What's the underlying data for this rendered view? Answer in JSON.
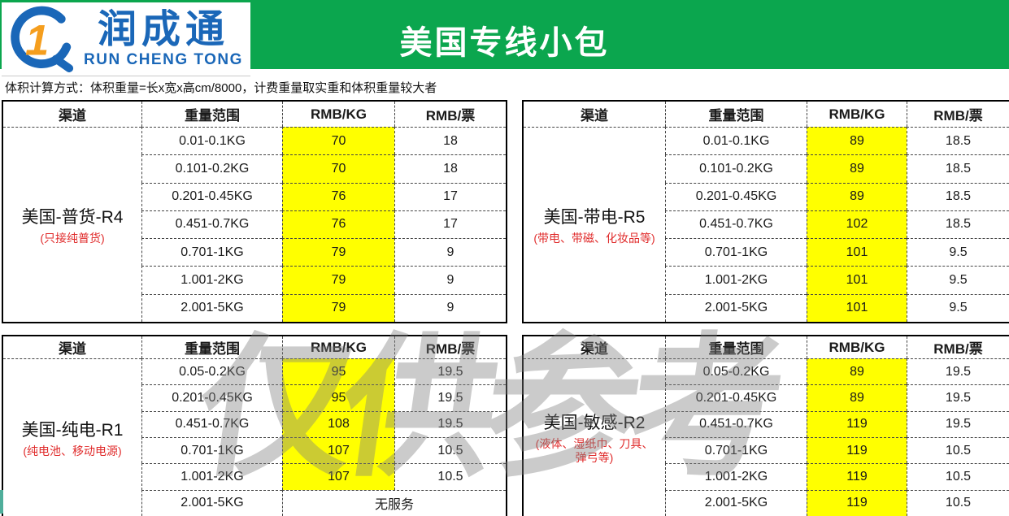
{
  "logo": {
    "brand_cn": "润成通",
    "brand_en": "RUN CHENG TONG"
  },
  "banner": {
    "title": "美国专线小包",
    "bg_color": "#0BA64E"
  },
  "note": "体积计算方式：体积重量=长x宽x高cm/8000，计费重量取实重和体积重量较大者",
  "watermark": "仅供参考",
  "columns": [
    "渠道",
    "重量范围",
    "RMB/KG",
    "RMB/票"
  ],
  "colors": {
    "rate_highlight": "#FFFF00",
    "brand_blue": "#1a67b8",
    "brand_orange": "#f59e1e",
    "note_red": "#e02b2b"
  },
  "tables": [
    {
      "channel": "美国-普货-R4",
      "channel_note": "(只接纯普货)",
      "rows": [
        {
          "range": "0.01-0.1KG",
          "kg": "70",
          "ticket": "18"
        },
        {
          "range": "0.101-0.2KG",
          "kg": "70",
          "ticket": "18"
        },
        {
          "range": "0.201-0.45KG",
          "kg": "76",
          "ticket": "17"
        },
        {
          "range": "0.451-0.7KG",
          "kg": "76",
          "ticket": "17"
        },
        {
          "range": "0.701-1KG",
          "kg": "79",
          "ticket": "9"
        },
        {
          "range": "1.001-2KG",
          "kg": "79",
          "ticket": "9"
        },
        {
          "range": "2.001-5KG",
          "kg": "79",
          "ticket": "9"
        }
      ]
    },
    {
      "channel": "美国-带电-R5",
      "channel_note": "(带电、带磁、化妆品等)",
      "rows": [
        {
          "range": "0.01-0.1KG",
          "kg": "89",
          "ticket": "18.5"
        },
        {
          "range": "0.101-0.2KG",
          "kg": "89",
          "ticket": "18.5"
        },
        {
          "range": "0.201-0.45KG",
          "kg": "89",
          "ticket": "18.5"
        },
        {
          "range": "0.451-0.7KG",
          "kg": "102",
          "ticket": "18.5"
        },
        {
          "range": "0.701-1KG",
          "kg": "101",
          "ticket": "9.5"
        },
        {
          "range": "1.001-2KG",
          "kg": "101",
          "ticket": "9.5"
        },
        {
          "range": "2.001-5KG",
          "kg": "101",
          "ticket": "9.5"
        }
      ]
    },
    {
      "channel": "美国-纯电-R1",
      "channel_note": "(纯电池、移动电源)",
      "rows": [
        {
          "range": "0.05-0.2KG",
          "kg": "95",
          "ticket": "19.5"
        },
        {
          "range": "0.201-0.45KG",
          "kg": "95",
          "ticket": "19.5"
        },
        {
          "range": "0.451-0.7KG",
          "kg": "108",
          "ticket": "19.5"
        },
        {
          "range": "0.701-1KG",
          "kg": "107",
          "ticket": "10.5"
        },
        {
          "range": "1.001-2KG",
          "kg": "107",
          "ticket": "10.5"
        },
        {
          "range": "2.001-5KG",
          "kg": "无服务",
          "ticket": null,
          "no_service": true
        }
      ]
    },
    {
      "channel": "美国-敏感-R2",
      "channel_note": "(液体、湿纸巾、刀具、弹弓等)",
      "rows": [
        {
          "range": "0.05-0.2KG",
          "kg": "89",
          "ticket": "19.5"
        },
        {
          "range": "0.201-0.45KG",
          "kg": "89",
          "ticket": "19.5"
        },
        {
          "range": "0.451-0.7KG",
          "kg": "119",
          "ticket": "19.5"
        },
        {
          "range": "0.701-1KG",
          "kg": "119",
          "ticket": "10.5"
        },
        {
          "range": "1.001-2KG",
          "kg": "119",
          "ticket": "10.5"
        },
        {
          "range": "2.001-5KG",
          "kg": "119",
          "ticket": "10.5"
        }
      ]
    }
  ]
}
